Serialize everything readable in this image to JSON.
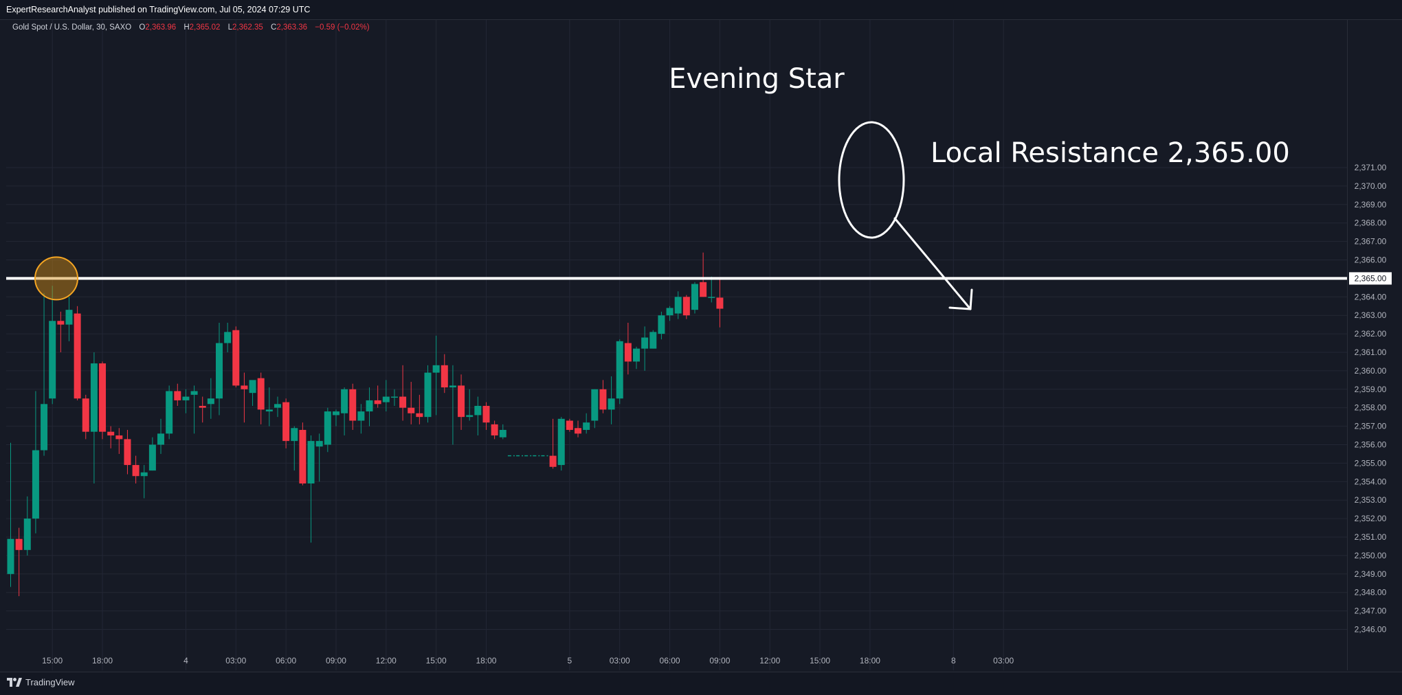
{
  "header": {
    "published": "ExpertResearchAnalyst published on TradingView.com, Jul 05, 2024 07:29 UTC"
  },
  "legend": {
    "symbol": "Gold Spot / U.S. Dollar, 30, SAXO",
    "o_label": "O",
    "o_value": "2,363.96",
    "h_label": "H",
    "h_value": "2,365.02",
    "l_label": "L",
    "l_value": "2,362.35",
    "c_label": "C",
    "c_value": "2,363.36",
    "change": "−0.59 (−0.02%)"
  },
  "annotations": {
    "pattern_label": "Evening Star",
    "resistance_label": "Local Resistance 2,365.00"
  },
  "footer": {
    "brand": "TradingView",
    "logo_icon": "tradingview-logo-icon"
  },
  "colors": {
    "background": "#161a25",
    "up": "#089981",
    "down": "#f23645",
    "grid": "#232735",
    "annotation": "#ffffff",
    "highlight": "#f5a623"
  },
  "chart_data": {
    "type": "candlestick",
    "symbol": "Gold Spot / U.S. Dollar",
    "interval": "30",
    "exchange": "SAXO",
    "grid": true,
    "y_axis_position": "right",
    "ylim": [
      2345.2,
      2371.4
    ],
    "y_ticks": [
      2346,
      2347,
      2348,
      2349,
      2350,
      2351,
      2352,
      2353,
      2354,
      2355,
      2356,
      2357,
      2358,
      2359,
      2360,
      2361,
      2362,
      2363,
      2364,
      2365,
      2366,
      2367,
      2368,
      2369,
      2370,
      2371
    ],
    "y_tick_labels": [
      "2,346.00",
      "2,347.00",
      "2,348.00",
      "2,349.00",
      "2,350.00",
      "2,351.00",
      "2,352.00",
      "2,353.00",
      "2,354.00",
      "2,355.00",
      "2,356.00",
      "2,357.00",
      "2,358.00",
      "2,359.00",
      "2,360.00",
      "2,361.00",
      "2,362.00",
      "2,363.00",
      "2,364.00",
      "2,365.00",
      "2,366.00",
      "2,367.00",
      "2,368.00",
      "2,369.00",
      "2,370.00",
      "2,371.00"
    ],
    "x_ticks": [
      {
        "bar": 5,
        "label": "15:00"
      },
      {
        "bar": 11,
        "label": "18:00"
      },
      {
        "bar": 21,
        "label": "4"
      },
      {
        "bar": 27,
        "label": "03:00"
      },
      {
        "bar": 33,
        "label": "06:00"
      },
      {
        "bar": 39,
        "label": "09:00"
      },
      {
        "bar": 45,
        "label": "12:00"
      },
      {
        "bar": 51,
        "label": "15:00"
      },
      {
        "bar": 57,
        "label": "18:00"
      },
      {
        "bar": 67,
        "label": "5"
      },
      {
        "bar": 73,
        "label": "03:00"
      },
      {
        "bar": 79,
        "label": "06:00"
      },
      {
        "bar": 85,
        "label": "09:00"
      },
      {
        "bar": 91,
        "label": "12:00"
      },
      {
        "bar": 97,
        "label": "15:00"
      },
      {
        "bar": 103,
        "label": "18:00"
      },
      {
        "bar": 113,
        "label": "8"
      },
      {
        "bar": 119,
        "label": "03:00"
      }
    ],
    "candles": [
      [
        0,
        2349.0,
        2356.1,
        2348.3,
        2350.9
      ],
      [
        1,
        2350.9,
        2351.5,
        2347.8,
        2350.3
      ],
      [
        2,
        2350.3,
        2353.2,
        2350.0,
        2352.0
      ],
      [
        3,
        2352.0,
        2358.9,
        2351.2,
        2355.7
      ],
      [
        4,
        2355.7,
        2364.2,
        2355.4,
        2358.2
      ],
      [
        5,
        2358.5,
        2364.6,
        2358.2,
        2362.7
      ],
      [
        6,
        2362.7,
        2363.2,
        2361.0,
        2362.5
      ],
      [
        7,
        2362.5,
        2364.0,
        2361.6,
        2363.3
      ],
      [
        8,
        2363.1,
        2363.5,
        2358.4,
        2358.5
      ],
      [
        9,
        2358.5,
        2358.7,
        2356.3,
        2356.7
      ],
      [
        10,
        2356.7,
        2361.0,
        2353.9,
        2360.4
      ],
      [
        11,
        2360.4,
        2360.5,
        2356.3,
        2356.7
      ],
      [
        12,
        2356.7,
        2357.0,
        2355.8,
        2356.5
      ],
      [
        13,
        2356.5,
        2356.9,
        2355.5,
        2356.3
      ],
      [
        14,
        2356.3,
        2356.8,
        2354.4,
        2354.9
      ],
      [
        15,
        2354.9,
        2355.4,
        2353.9,
        2354.3
      ],
      [
        16,
        2354.3,
        2354.9,
        2353.1,
        2354.5
      ],
      [
        17,
        2354.6,
        2356.4,
        2354.6,
        2356.0
      ],
      [
        18,
        2356.0,
        2357.4,
        2355.5,
        2356.6
      ],
      [
        19,
        2356.6,
        2359.2,
        2356.3,
        2358.9
      ],
      [
        20,
        2358.9,
        2359.3,
        2358.1,
        2358.4
      ],
      [
        21,
        2358.4,
        2359.0,
        2357.7,
        2358.6
      ],
      [
        22,
        2358.7,
        2359.2,
        2356.6,
        2358.9
      ],
      [
        23,
        2358.1,
        2358.6,
        2357.2,
        2358.0
      ],
      [
        24,
        2358.2,
        2359.6,
        2357.4,
        2358.5
      ],
      [
        25,
        2358.5,
        2362.6,
        2357.6,
        2361.5
      ],
      [
        26,
        2361.5,
        2362.6,
        2361.0,
        2362.1
      ],
      [
        27,
        2362.2,
        2362.4,
        2359.1,
        2359.2
      ],
      [
        28,
        2359.2,
        2359.9,
        2357.2,
        2359.0
      ],
      [
        29,
        2358.8,
        2359.4,
        2358.1,
        2359.5
      ],
      [
        30,
        2359.6,
        2359.9,
        2357.1,
        2357.9
      ],
      [
        31,
        2357.8,
        2359.1,
        2357.0,
        2357.9
      ],
      [
        32,
        2358.0,
        2358.6,
        2357.5,
        2358.2
      ],
      [
        33,
        2358.3,
        2358.5,
        2355.8,
        2356.2
      ],
      [
        34,
        2356.2,
        2357.0,
        2354.6,
        2356.9
      ],
      [
        35,
        2356.8,
        2357.2,
        2353.8,
        2353.9
      ],
      [
        36,
        2353.9,
        2356.5,
        2350.7,
        2356.2
      ],
      [
        37,
        2355.9,
        2356.6,
        2354.0,
        2356.2
      ],
      [
        38,
        2356.0,
        2358.0,
        2355.6,
        2357.8
      ],
      [
        39,
        2357.6,
        2357.9,
        2357.0,
        2357.8
      ],
      [
        40,
        2357.7,
        2359.1,
        2356.5,
        2359.0
      ],
      [
        41,
        2359.0,
        2359.3,
        2356.8,
        2357.3
      ],
      [
        42,
        2357.3,
        2358.2,
        2356.6,
        2357.8
      ],
      [
        43,
        2357.8,
        2359.1,
        2357.0,
        2358.4
      ],
      [
        44,
        2358.4,
        2359.2,
        2358.0,
        2358.2
      ],
      [
        45,
        2358.3,
        2359.5,
        2357.8,
        2358.6
      ],
      [
        46,
        2358.6,
        2359.0,
        2358.1,
        2358.6
      ],
      [
        47,
        2358.6,
        2360.3,
        2357.3,
        2358.0
      ],
      [
        48,
        2358.0,
        2359.4,
        2357.1,
        2357.7
      ],
      [
        49,
        2357.7,
        2358.7,
        2357.1,
        2357.5
      ],
      [
        50,
        2357.5,
        2360.3,
        2357.2,
        2359.9
      ],
      [
        51,
        2359.9,
        2361.9,
        2357.6,
        2360.3
      ],
      [
        52,
        2360.3,
        2360.9,
        2358.8,
        2359.1
      ],
      [
        53,
        2359.1,
        2360.3,
        2356.0,
        2359.2
      ],
      [
        54,
        2359.2,
        2359.8,
        2356.8,
        2357.5
      ],
      [
        55,
        2357.5,
        2359.0,
        2357.3,
        2357.6
      ],
      [
        56,
        2357.6,
        2358.6,
        2356.5,
        2358.1
      ],
      [
        57,
        2358.1,
        2358.3,
        2356.8,
        2357.2
      ],
      [
        58,
        2357.1,
        2357.3,
        2356.3,
        2356.5
      ],
      [
        59,
        2356.4,
        2357.1,
        2356.3,
        2356.8
      ],
      [
        60,
        2355.4,
        2355.4,
        2355.4,
        2355.4
      ],
      [
        61,
        2355.4,
        2355.4,
        2355.4,
        2355.4
      ],
      [
        62,
        2355.4,
        2355.4,
        2355.4,
        2355.4
      ],
      [
        63,
        2355.4,
        2355.4,
        2355.4,
        2355.4
      ],
      [
        64,
        2355.4,
        2355.4,
        2355.4,
        2355.4
      ],
      [
        65,
        2355.4,
        2357.4,
        2354.7,
        2354.8
      ],
      [
        66,
        2354.9,
        2357.5,
        2354.6,
        2357.4
      ],
      [
        67,
        2357.3,
        2357.4,
        2356.7,
        2356.8
      ],
      [
        68,
        2356.9,
        2357.3,
        2356.4,
        2356.6
      ],
      [
        69,
        2356.8,
        2357.7,
        2356.6,
        2357.2
      ],
      [
        70,
        2357.3,
        2359.0,
        2356.9,
        2359.0
      ],
      [
        71,
        2359.0,
        2359.5,
        2357.7,
        2357.9
      ],
      [
        72,
        2357.9,
        2359.7,
        2357.1,
        2358.5
      ],
      [
        73,
        2358.5,
        2361.7,
        2358.2,
        2361.6
      ],
      [
        74,
        2361.5,
        2362.6,
        2359.8,
        2360.5
      ],
      [
        75,
        2360.5,
        2361.3,
        2360.1,
        2361.2
      ],
      [
        76,
        2361.2,
        2362.4,
        2360.0,
        2361.8
      ],
      [
        77,
        2361.2,
        2362.2,
        2361.2,
        2362.1
      ],
      [
        78,
        2362.0,
        2363.2,
        2361.7,
        2363.0
      ],
      [
        79,
        2363.0,
        2363.5,
        2362.7,
        2363.4
      ],
      [
        80,
        2363.1,
        2364.3,
        2362.8,
        2364.0
      ],
      [
        81,
        2364.0,
        2364.1,
        2362.8,
        2363.0
      ],
      [
        82,
        2363.3,
        2364.8,
        2363.1,
        2364.7
      ],
      [
        83,
        2364.8,
        2366.4,
        2364.0,
        2364.0
      ],
      [
        84,
        2364.0,
        2365.1,
        2363.7,
        2364.0
      ],
      [
        85,
        2363.96,
        2365.02,
        2362.35,
        2363.36
      ]
    ]
  }
}
